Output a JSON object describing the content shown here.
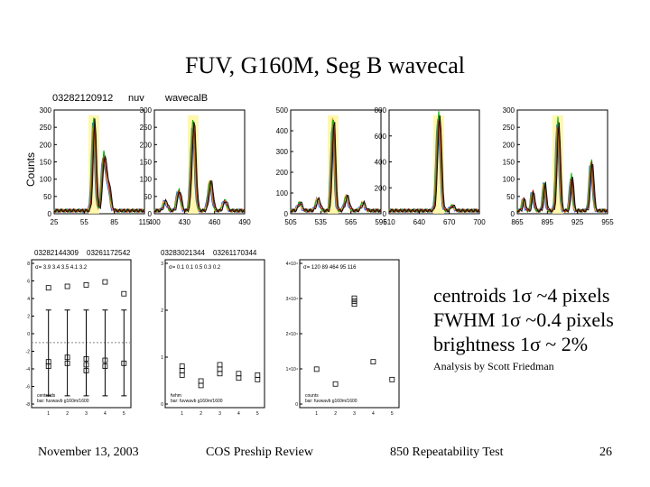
{
  "slide": {
    "title": "FUV, G160M, Seg B wavecal",
    "stats": [
      "centroids 1σ ~4 pixels",
      "FWHM 1σ ~0.4 pixels",
      "brightness 1σ ~ 2%"
    ],
    "credit": "Analysis by Scott Friedman",
    "footer": {
      "date": "November 13, 2003",
      "event": "COS Preship Review",
      "topic": "850 Repeatability Test",
      "page": "26"
    }
  },
  "spectra_figure": {
    "header_id": "03282120912",
    "header_detector": "nuv",
    "header_mode": "wavecalB",
    "ylabel": "Counts",
    "panels": [
      {
        "xticks": [
          "25",
          "55",
          "85",
          "115"
        ],
        "yticks": [
          "0",
          "50",
          "100",
          "150",
          "200",
          "250",
          "300"
        ]
      },
      {
        "xticks": [
          "400",
          "430",
          "460",
          "490"
        ],
        "yticks": [
          "0",
          "50",
          "100",
          "150",
          "200",
          "250",
          "300"
        ]
      },
      {
        "xticks": [
          "505",
          "535",
          "565",
          "595"
        ],
        "yticks": [
          "0",
          "100",
          "200",
          "300",
          "400",
          "500"
        ]
      },
      {
        "xticks": [
          "610",
          "640",
          "670",
          "700"
        ],
        "yticks": [
          "0",
          "200",
          "400",
          "600",
          "800"
        ]
      },
      {
        "xticks": [
          "865",
          "895",
          "925",
          "955"
        ],
        "yticks": [
          "0",
          "50",
          "100",
          "150",
          "200",
          "250",
          "300"
        ]
      }
    ]
  },
  "repeat_figure": {
    "header_ids": [
      "03282144309",
      "03261172542",
      "03283021344",
      "03261170344"
    ],
    "panels": [
      {
        "sigma_label": "σ= 3.9 3.4 3.5 4.1 3.2",
        "legend": [
          "centroids",
          "bar: fuvwavb g160m/1600"
        ],
        "yticks": [
          "8",
          "6",
          "4",
          "2",
          "0",
          "-2",
          "-4",
          "-6",
          "-8"
        ],
        "xticks": [
          "1",
          "2",
          "3",
          "4",
          "5"
        ]
      },
      {
        "sigma_label": "σ= 0.1 0.1 0.5 0.3 0.2",
        "legend": [
          "fwhm",
          "bar: fuvwavb g160m/1600"
        ],
        "yticks": [
          "3",
          "2",
          "1",
          "0"
        ],
        "xticks": [
          "1",
          "2",
          "3",
          "4",
          "5"
        ]
      },
      {
        "sigma_label": "σ= 120 89 464 95 116",
        "legend": [
          "counts",
          "bar: fuvwavb g160m/1600"
        ],
        "yticks": [
          "4×10⁴",
          "3×10⁴",
          "2×10⁴",
          "1×10⁴",
          "0"
        ],
        "xticks": [
          "1",
          "2",
          "3",
          "4",
          "5"
        ]
      }
    ]
  }
}
